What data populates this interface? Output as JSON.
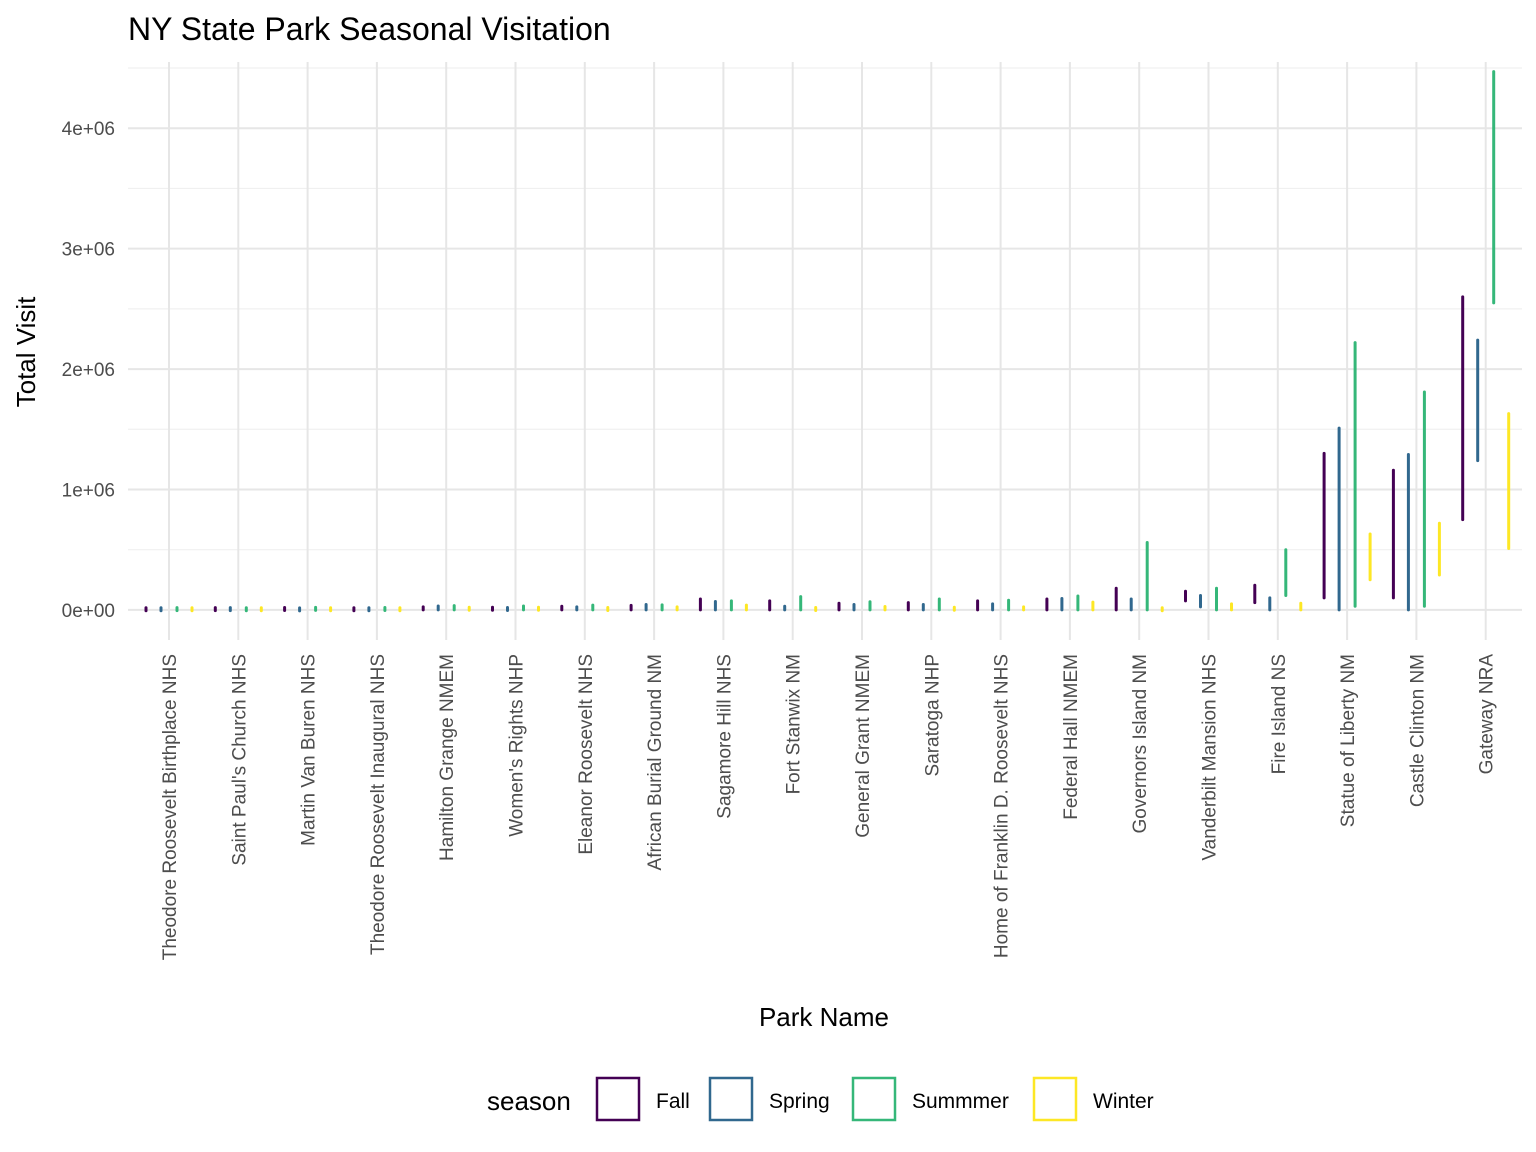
{
  "chart_data": {
    "type": "range-bar",
    "title": "NY State Park Seasonal Visitation",
    "xlabel": "Park Name",
    "ylabel": "Total Visit",
    "ylim": [
      -250000,
      4550000
    ],
    "yticks": [
      0,
      1000000,
      2000000,
      3000000,
      4000000
    ],
    "ytick_labels": [
      "0e+00",
      "1e+06",
      "2e+06",
      "3e+06",
      "4e+06"
    ],
    "grid": true,
    "legend": {
      "title": "season",
      "position": "bottom",
      "entries": [
        {
          "name": "Fall",
          "color": "#440154"
        },
        {
          "name": "Spring",
          "color": "#31688e"
        },
        {
          "name": "Summmer",
          "color": "#35b779"
        },
        {
          "name": "Winter",
          "color": "#fde725"
        }
      ]
    },
    "categories": [
      "Theodore Roosevelt Birthplace NHS",
      "Saint Paul's Church NHS",
      "Martin Van Buren NHS",
      "Theodore Roosevelt Inaugural NHS",
      "Hamilton Grange NMEM",
      "Women's Rights NHP",
      "Eleanor Roosevelt NHS",
      "African Burial Ground NM",
      "Sagamore Hill NHS",
      "Fort Stanwix NM",
      "General Grant NMEM",
      "Saratoga NHP",
      "Home of Franklin D. Roosevelt NHS",
      "Federal Hall NMEM",
      "Governors Island NM",
      "Vanderbilt Mansion NHS",
      "Fire Island NS",
      "Statue of Liberty NM",
      "Castle Clinton NM",
      "Gateway NRA"
    ],
    "series": [
      {
        "name": "Fall",
        "ranges": [
          [
            0,
            10000
          ],
          [
            0,
            12000
          ],
          [
            0,
            14000
          ],
          [
            0,
            10000
          ],
          [
            0,
            25000
          ],
          [
            0,
            20000
          ],
          [
            0,
            30000
          ],
          [
            0,
            38000
          ],
          [
            0,
            90000
          ],
          [
            0,
            75000
          ],
          [
            0,
            55000
          ],
          [
            0,
            60000
          ],
          [
            0,
            75000
          ],
          [
            0,
            90000
          ],
          [
            0,
            180000
          ],
          [
            75000,
            155000
          ],
          [
            60000,
            205000
          ],
          [
            100000,
            1300000
          ],
          [
            100000,
            1160000
          ],
          [
            750000,
            2600000
          ]
        ]
      },
      {
        "name": "Spring",
        "ranges": [
          [
            0,
            10000
          ],
          [
            0,
            12000
          ],
          [
            0,
            9000
          ],
          [
            0,
            10000
          ],
          [
            0,
            32000
          ],
          [
            0,
            14000
          ],
          [
            0,
            25000
          ],
          [
            0,
            45000
          ],
          [
            0,
            70000
          ],
          [
            0,
            30000
          ],
          [
            0,
            45000
          ],
          [
            0,
            45000
          ],
          [
            0,
            50000
          ],
          [
            0,
            95000
          ],
          [
            0,
            90000
          ],
          [
            25000,
            120000
          ],
          [
            0,
            100000
          ],
          [
            0,
            1510000
          ],
          [
            0,
            1290000
          ],
          [
            1240000,
            2240000
          ]
        ]
      },
      {
        "name": "Summmer",
        "ranges": [
          [
            0,
            12000
          ],
          [
            0,
            10000
          ],
          [
            0,
            16000
          ],
          [
            0,
            15000
          ],
          [
            0,
            35000
          ],
          [
            0,
            32000
          ],
          [
            0,
            40000
          ],
          [
            0,
            42000
          ],
          [
            0,
            75000
          ],
          [
            0,
            110000
          ],
          [
            0,
            68000
          ],
          [
            0,
            90000
          ],
          [
            0,
            80000
          ],
          [
            0,
            115000
          ],
          [
            0,
            560000
          ],
          [
            0,
            180000
          ],
          [
            120000,
            500000
          ],
          [
            30000,
            2220000
          ],
          [
            30000,
            1810000
          ],
          [
            2550000,
            4470000
          ]
        ]
      },
      {
        "name": "Winter",
        "ranges": [
          [
            0,
            10000
          ],
          [
            0,
            10000
          ],
          [
            0,
            10000
          ],
          [
            0,
            10000
          ],
          [
            0,
            18000
          ],
          [
            0,
            20000
          ],
          [
            0,
            15000
          ],
          [
            0,
            25000
          ],
          [
            0,
            40000
          ],
          [
            0,
            15000
          ],
          [
            0,
            28000
          ],
          [
            0,
            20000
          ],
          [
            0,
            25000
          ],
          [
            0,
            65000
          ],
          [
            0,
            10000
          ],
          [
            0,
            50000
          ],
          [
            0,
            55000
          ],
          [
            250000,
            630000
          ],
          [
            290000,
            720000
          ],
          [
            510000,
            1630000
          ]
        ]
      }
    ]
  }
}
